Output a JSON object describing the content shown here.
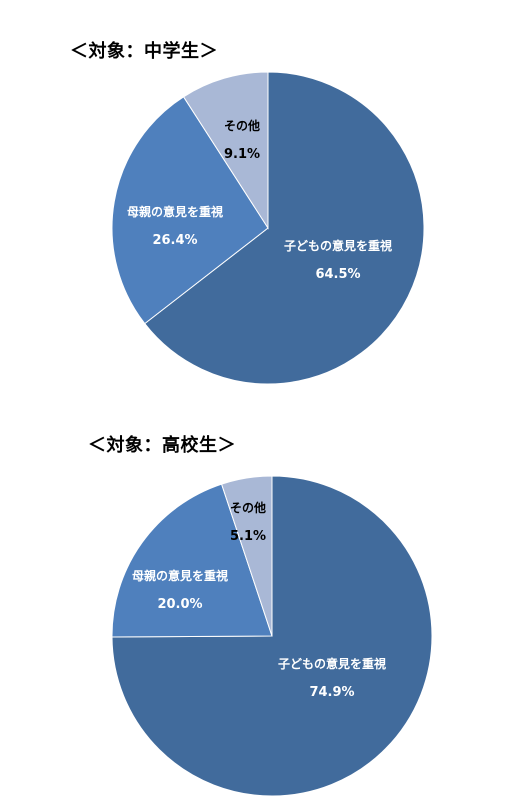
{
  "colors": {
    "main": "#416B9C",
    "second": "#4F80BD",
    "other": "#A9B8D6"
  },
  "chart_data": [
    {
      "type": "pie",
      "title": "＜対象：中学生＞",
      "slices": [
        {
          "label": "子どもの意見を重視",
          "value": 64.5,
          "value_text": "64.5%",
          "color": "#416B9C",
          "text_color": "#ffffff"
        },
        {
          "label": "母親の意見を重視",
          "value": 26.4,
          "value_text": "26.4%",
          "color": "#4F80BD",
          "text_color": "#ffffff"
        },
        {
          "label": "その他",
          "value": 9.1,
          "value_text": "9.1%",
          "color": "#A9B8D6",
          "text_color": "#000000"
        }
      ]
    },
    {
      "type": "pie",
      "title": "＜対象：高校生＞",
      "slices": [
        {
          "label": "子どもの意見を重視",
          "value": 74.9,
          "value_text": "74.9%",
          "color": "#416B9C",
          "text_color": "#ffffff"
        },
        {
          "label": "母親の意見を重視",
          "value": 20.0,
          "value_text": "20.0%",
          "color": "#4F80BD",
          "text_color": "#ffffff"
        },
        {
          "label": "その他",
          "value": 5.1,
          "value_text": "5.1%",
          "color": "#A9B8D6",
          "text_color": "#000000"
        }
      ]
    }
  ]
}
